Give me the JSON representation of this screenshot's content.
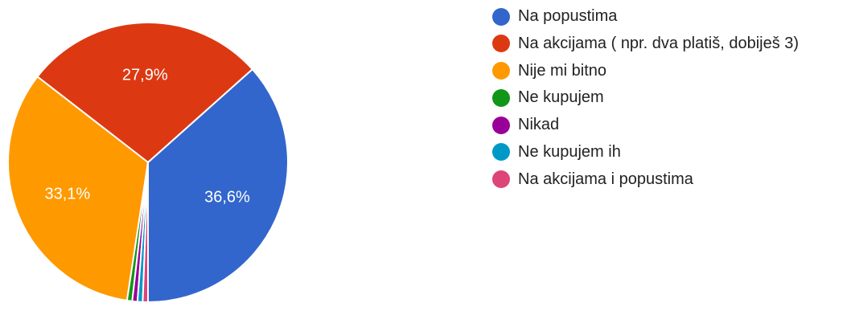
{
  "chart_data": {
    "type": "pie",
    "series": [
      {
        "name": "Na popustima",
        "value": 36.6,
        "label": "36,6%",
        "color": "#3366cc"
      },
      {
        "name": "Na akcijama ( npr. dva platiš, dobiješ 3)",
        "value": 27.9,
        "label": "27,9%",
        "color": "#dc3912"
      },
      {
        "name": "Nije mi bitno",
        "value": 33.1,
        "label": "33,1%",
        "color": "#ff9900"
      },
      {
        "name": "Ne kupujem",
        "value": 0.6,
        "label": "",
        "color": "#109618"
      },
      {
        "name": "Nikad",
        "value": 0.6,
        "label": "",
        "color": "#990099"
      },
      {
        "name": "Ne kupujem ih",
        "value": 0.6,
        "label": "",
        "color": "#0099c6"
      },
      {
        "name": "Na akcijama i popustima",
        "value": 0.6,
        "label": "",
        "color": "#dd4477"
      }
    ],
    "start_angle_deg": 90,
    "direction": "clockwise",
    "legend_position": "right"
  }
}
